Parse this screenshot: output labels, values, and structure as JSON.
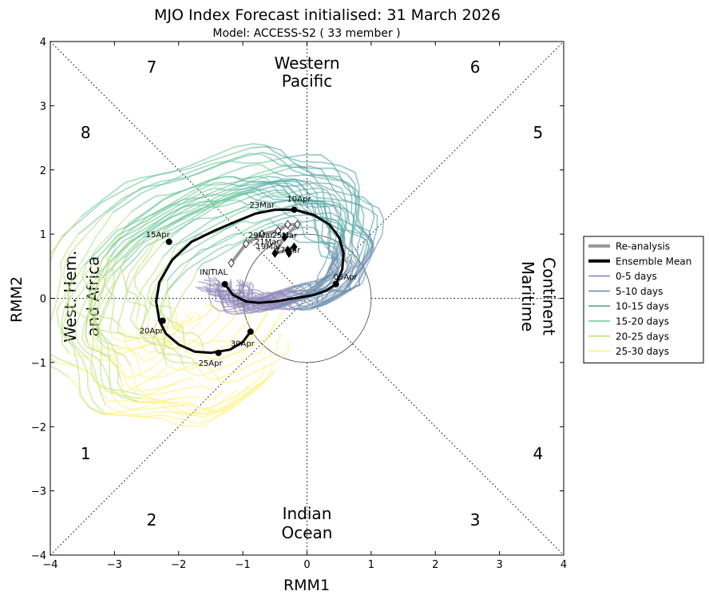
{
  "chart_data": {
    "type": "line",
    "title": "MJO Index Forecast initialised:  31  March 2026",
    "subtitle": "Model: ACCESS-S2 ( 33 member )",
    "xlabel": "RMM1",
    "ylabel": "RMM2",
    "xlim": [
      -4,
      4
    ],
    "ylim": [
      -4,
      4
    ],
    "xticks": [
      -4,
      -3,
      -2,
      -1,
      0,
      1,
      2,
      3,
      4
    ],
    "yticks": [
      -4,
      -3,
      -2,
      -1,
      0,
      1,
      2,
      3,
      4
    ],
    "tick_labels_x": [
      "−4",
      "−3",
      "−2",
      "−1",
      "0",
      "1",
      "2",
      "3",
      "4"
    ],
    "tick_labels_y": [
      "−4",
      "−3",
      "−2",
      "−1",
      "0",
      "1",
      "2",
      "3",
      "4"
    ],
    "phase_numbers": [
      {
        "label": "1",
        "x": -3.45,
        "y": -2.42
      },
      {
        "label": "2",
        "x": -2.42,
        "y": -3.45
      },
      {
        "label": "3",
        "x": 2.62,
        "y": -3.45
      },
      {
        "label": "4",
        "x": 3.6,
        "y": -2.42
      },
      {
        "label": "5",
        "x": 3.6,
        "y": 2.58
      },
      {
        "label": "6",
        "x": 2.62,
        "y": 3.6
      },
      {
        "label": "7",
        "x": -2.42,
        "y": 3.6
      },
      {
        "label": "8",
        "x": -3.45,
        "y": 2.58
      }
    ],
    "regions": {
      "top": [
        "Western",
        "Pacific"
      ],
      "bottom": [
        "Indian",
        "Ocean"
      ],
      "left": [
        "West. Hem.",
        "and Africa"
      ],
      "right": [
        "Maritime",
        "Continent"
      ]
    },
    "unit_circle_radius": 1,
    "legend": {
      "placement": "right",
      "entries": [
        {
          "label": "Re-analysis",
          "color": "#999999",
          "width": "thick"
        },
        {
          "label": "Ensemble Mean",
          "color": "#000000",
          "width": "thick"
        },
        {
          "label": "0-5 days",
          "color": "#8e86b8"
        },
        {
          "label": "5-10 days",
          "color": "#6f90ae"
        },
        {
          "label": "10-15 days",
          "color": "#56a7a6"
        },
        {
          "label": "15-20 days",
          "color": "#6cc79d"
        },
        {
          "label": "20-25 days",
          "color": "#bfe083"
        },
        {
          "label": "25-30 days",
          "color": "#fff27a"
        }
      ]
    },
    "reanalysis": {
      "x": [
        -1.18,
        -0.95,
        -0.7,
        -0.45,
        -0.3,
        -0.15,
        -0.35,
        -0.5,
        -0.3,
        -0.2,
        -0.28
      ],
      "y": [
        0.55,
        0.85,
        1.0,
        1.05,
        1.15,
        1.15,
        0.95,
        0.7,
        0.75,
        0.8,
        0.7
      ]
    },
    "reanalysis_labels": [
      {
        "label": "23Mar",
        "x": -0.7,
        "y": 1.35
      },
      {
        "label": "29Mar",
        "x": -0.72,
        "y": 0.88
      },
      {
        "label": "21Mar",
        "x": -0.62,
        "y": 0.78
      },
      {
        "label": "25Mar",
        "x": -0.35,
        "y": 0.88
      },
      {
        "label": "19Mar",
        "x": -0.6,
        "y": 0.7
      },
      {
        "label": "17Mar",
        "x": -0.3,
        "y": 0.65
      }
    ],
    "ensemble_mean": {
      "x": [
        -1.28,
        -1.15,
        -0.95,
        -0.75,
        -0.5,
        -0.2,
        0.1,
        0.3,
        0.45,
        0.55,
        0.57,
        0.5,
        0.35,
        0.1,
        -0.2,
        -0.5,
        -0.8,
        -1.1,
        -1.45,
        -1.8,
        -2.1,
        -2.3,
        -2.35,
        -2.3,
        -2.2,
        -2.0,
        -1.75,
        -1.5,
        -1.2,
        -1.0,
        -0.88
      ],
      "y": [
        0.22,
        0.05,
        -0.05,
        -0.07,
        -0.05,
        0.0,
        0.05,
        0.12,
        0.22,
        0.45,
        0.7,
        0.95,
        1.15,
        1.3,
        1.38,
        1.38,
        1.32,
        1.2,
        1.05,
        0.88,
        0.6,
        0.25,
        -0.05,
        -0.35,
        -0.55,
        -0.72,
        -0.83,
        -0.85,
        -0.8,
        -0.68,
        -0.52
      ]
    },
    "ensemble_mean_labels": [
      {
        "label": "INITIAL",
        "x": -1.28,
        "y": 0.22
      },
      {
        "label": "05Apr",
        "x": 0.45,
        "y": 0.22
      },
      {
        "label": "10Apr",
        "x": -0.2,
        "y": 1.38
      },
      {
        "label": "15Apr",
        "x": -2.15,
        "y": 0.88
      },
      {
        "label": "20Apr",
        "x": -2.25,
        "y": -0.35
      },
      {
        "label": "25Apr",
        "x": -1.38,
        "y": -0.85
      },
      {
        "label": "30Apr",
        "x": -0.88,
        "y": -0.52
      }
    ]
  }
}
